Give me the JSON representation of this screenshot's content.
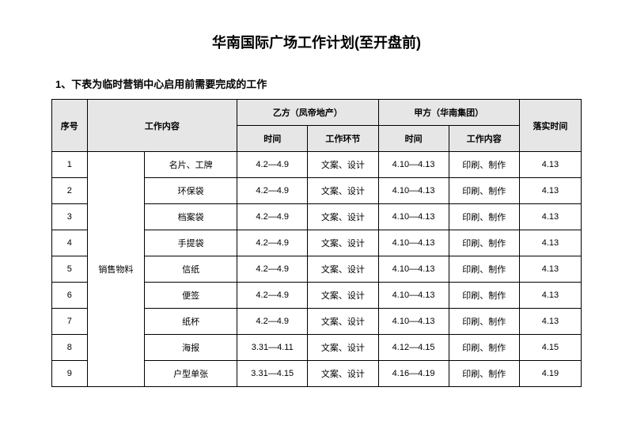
{
  "title": "华南国际广场工作计划(至开盘前)",
  "subtitle": "1、下表为临时营销中心启用前需要完成的工作",
  "table": {
    "header": {
      "seq": "序号",
      "content": "工作内容",
      "partyB": "乙方（凤帝地产）",
      "partyA": "甲方（华南集团）",
      "finalTime": "落实时间",
      "timeB": "时间",
      "stepB": "工作环节",
      "timeA": "时间",
      "stepA": "工作内容"
    },
    "category": "销售物料",
    "rows": [
      {
        "seq": "1",
        "item": "名片、工牌",
        "timeB": "4.2—4.9",
        "stepB": "文案、设计",
        "timeA": "4.10—4.13",
        "stepA": "印刷、制作",
        "final": "4.13"
      },
      {
        "seq": "2",
        "item": "环保袋",
        "timeB": "4.2—4.9",
        "stepB": "文案、设计",
        "timeA": "4.10—4.13",
        "stepA": "印刷、制作",
        "final": "4.13"
      },
      {
        "seq": "3",
        "item": "档案袋",
        "timeB": "4.2—4.9",
        "stepB": "文案、设计",
        "timeA": "4.10—4.13",
        "stepA": "印刷、制作",
        "final": "4.13"
      },
      {
        "seq": "4",
        "item": "手提袋",
        "timeB": "4.2—4.9",
        "stepB": "文案、设计",
        "timeA": "4.10—4.13",
        "stepA": "印刷、制作",
        "final": "4.13"
      },
      {
        "seq": "5",
        "item": "信纸",
        "timeB": "4.2—4.9",
        "stepB": "文案、设计",
        "timeA": "4.10—4.13",
        "stepA": "印刷、制作",
        "final": "4.13"
      },
      {
        "seq": "6",
        "item": "便签",
        "timeB": "4.2—4.9",
        "stepB": "文案、设计",
        "timeA": "4.10—4.13",
        "stepA": "印刷、制作",
        "final": "4.13"
      },
      {
        "seq": "7",
        "item": "纸杯",
        "timeB": "4.2—4.9",
        "stepB": "文案、设计",
        "timeA": "4.10—4.13",
        "stepA": "印刷、制作",
        "final": "4.13"
      },
      {
        "seq": "8",
        "item": "海报",
        "timeB": "3.31—4.11",
        "stepB": "文案、设计",
        "timeA": "4.12—4.15",
        "stepA": "印刷、制作",
        "final": "4.15"
      },
      {
        "seq": "9",
        "item": "户型单张",
        "timeB": "3.31—4.15",
        "stepB": "文案、设计",
        "timeA": "4.16—4.19",
        "stepA": "印刷、制作",
        "final": "4.19"
      }
    ]
  },
  "style": {
    "background_color": "#ffffff",
    "header_bg": "#e6e6e6",
    "border_color": "#000000",
    "title_fontsize": 18,
    "subtitle_fontsize": 13,
    "table_fontsize": 11
  }
}
